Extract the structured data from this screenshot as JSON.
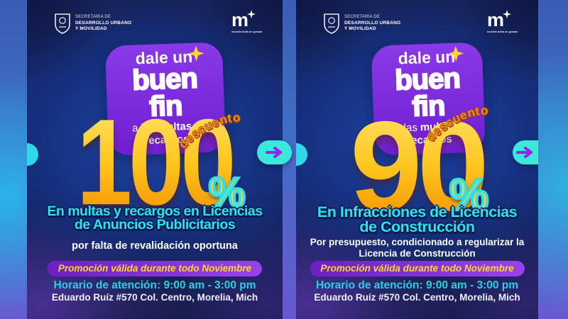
{
  "branding": {
    "agency": {
      "line1": "SECRETARÍA DE",
      "line2": "DESARROLLO URBANO",
      "line3": "Y MOVILIDAD"
    },
    "city_logo": {
      "letter": "m",
      "tagline": "morelia brilla en grande"
    }
  },
  "shared": {
    "badge": {
      "line1": "dale un",
      "line2": "buen fin",
      "line3_prefix": "a las",
      "line3_bold": "multas y recargos"
    },
    "discount_label": "descuento",
    "percent_sign": "%",
    "promo": "Promoción válida durante todo Noviembre",
    "hours": "Horario de atención: 9:00 am - 3:00 pm",
    "address": "Eduardo Ruíz #570 Col. Centro, Morelia, Mich"
  },
  "posters": [
    {
      "discount_value": "100",
      "heading_line1": "En multas y recargos en Licencias",
      "heading_line2": "de Anuncios Publicitarios",
      "sub_line1": "por falta de revalidación oportuna",
      "sub_line2": ""
    },
    {
      "discount_value": "90",
      "heading_line1": "En Infracciones de Licencias",
      "heading_line2": "de Construcción",
      "sub_line1": "Por presupuesto, condicionado a regularizar la",
      "sub_line2": "Licencia de Construcción"
    }
  ],
  "colors": {
    "poster_navy": "#162a74",
    "badge_purple": "#7c2fd6",
    "discount_yellow": "#ffc21c",
    "descuento_orange": "#f5871c",
    "accent_cyan": "#2ee2ec",
    "promo_pill_purple": "#8a2be2",
    "promo_text_yellow": "#ffd629",
    "arrow_pill_turquoise": "#3ae9d9",
    "arrow_purple": "#9b22e8",
    "background_blue": "#3f6ec4",
    "background_violet": "#6a58d0"
  }
}
